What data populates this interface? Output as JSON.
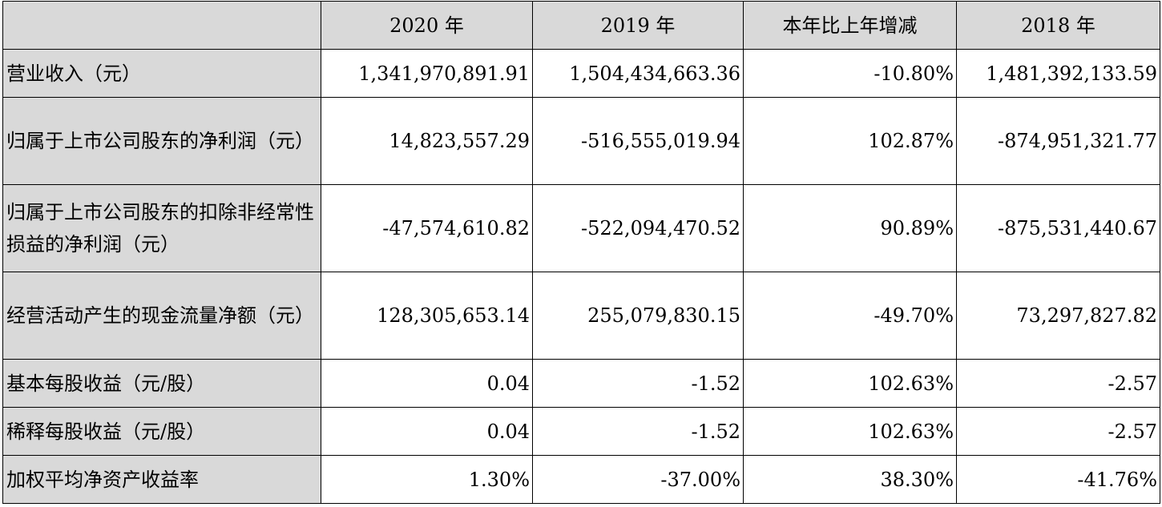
{
  "table": {
    "headers": [
      "",
      "2020 年",
      "2019 年",
      "本年比上年增减",
      "2018 年"
    ],
    "rows": [
      {
        "label": "营业收入（元）",
        "values": [
          "1,341,970,891.91",
          "1,504,434,663.36",
          "-10.80%",
          "1,481,392,133.59"
        ]
      },
      {
        "label": "归属于上市公司股东的净利润（元）",
        "values": [
          "14,823,557.29",
          "-516,555,019.94",
          "102.87%",
          "-874,951,321.77"
        ]
      },
      {
        "label": "归属于上市公司股东的扣除非经常性损益的净利润（元）",
        "values": [
          "-47,574,610.82",
          "-522,094,470.52",
          "90.89%",
          "-875,531,440.67"
        ]
      },
      {
        "label": "经营活动产生的现金流量净额（元）",
        "values": [
          "128,305,653.14",
          "255,079,830.15",
          "-49.70%",
          "73,297,827.82"
        ]
      },
      {
        "label": "基本每股收益（元/股）",
        "values": [
          "0.04",
          "-1.52",
          "102.63%",
          "-2.57"
        ]
      },
      {
        "label": "稀释每股收益（元/股）",
        "values": [
          "0.04",
          "-1.52",
          "102.63%",
          "-2.57"
        ]
      },
      {
        "label": "加权平均净资产收益率",
        "values": [
          "1.30%",
          "-37.00%",
          "38.30%",
          "-41.76%"
        ]
      }
    ]
  }
}
